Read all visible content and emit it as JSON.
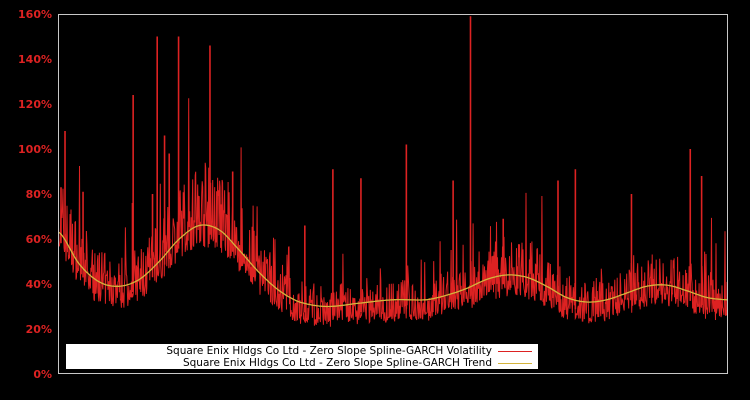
{
  "colors": {
    "background": "#000000",
    "tick_label": "#dd2222",
    "volatility": "#dd2222",
    "trend": "#d4b43c",
    "frame": "#c8c8c8",
    "legend_bg": "#ffffff"
  },
  "legend": {
    "items": [
      {
        "label": "Square Enix Hldgs Co Ltd - Zero Slope Spline-GARCH Volatility",
        "color": "#dd2222"
      },
      {
        "label": "Square Enix Hldgs Co Ltd - Zero Slope Spline-GARCH Trend",
        "color": "#d4b43c"
      }
    ]
  },
  "yaxis": {
    "ticks": [
      "0%",
      "20%",
      "40%",
      "60%",
      "80%",
      "100%",
      "120%",
      "140%",
      "160%"
    ]
  },
  "chart_data": {
    "type": "line",
    "title": "",
    "xlabel": "",
    "ylabel": "",
    "ylim": [
      0,
      160
    ],
    "grid": false,
    "legend_position": "lower left (inside plot)",
    "y_tick_labels": [
      "0%",
      "20%",
      "40%",
      "60%",
      "80%",
      "100%",
      "120%",
      "140%",
      "160%"
    ],
    "x_tick_labels": [],
    "x_normalized_range": [
      0,
      1
    ],
    "series": [
      {
        "name": "Square Enix Hldgs Co Ltd - Zero Slope Spline-GARCH Trend",
        "color": "#d4b43c",
        "x": [
          0.0,
          0.03,
          0.06,
          0.09,
          0.12,
          0.15,
          0.18,
          0.21,
          0.24,
          0.27,
          0.3,
          0.33,
          0.36,
          0.4,
          0.45,
          0.5,
          0.55,
          0.58,
          0.61,
          0.64,
          0.67,
          0.7,
          0.73,
          0.76,
          0.79,
          0.82,
          0.85,
          0.88,
          0.91,
          0.94,
          0.97,
          1.0
        ],
        "values": [
          63,
          49,
          41,
          39,
          42,
          50,
          60,
          66,
          64,
          55,
          45,
          37,
          32,
          30,
          31.5,
          33,
          33,
          35,
          38,
          42,
          44,
          43,
          39,
          34,
          32,
          33,
          36,
          39,
          39.5,
          37,
          34,
          33
        ]
      },
      {
        "name": "Square Enix Hldgs Co Ltd - Zero Slope Spline-GARCH Volatility",
        "color": "#dd2222",
        "note": "Daily volatility, noisy around trend; notable spikes listed",
        "baseline_offset_below_trend": -8,
        "spikes": [
          {
            "x": 0.009,
            "value": 108
          },
          {
            "x": 0.003,
            "value": 83
          },
          {
            "x": 0.036,
            "value": 81
          },
          {
            "x": 0.11,
            "value": 76
          },
          {
            "x": 0.111,
            "value": 124
          },
          {
            "x": 0.14,
            "value": 80
          },
          {
            "x": 0.147,
            "value": 150
          },
          {
            "x": 0.158,
            "value": 106
          },
          {
            "x": 0.165,
            "value": 98
          },
          {
            "x": 0.179,
            "value": 150
          },
          {
            "x": 0.226,
            "value": 146
          },
          {
            "x": 0.26,
            "value": 90
          },
          {
            "x": 0.29,
            "value": 65
          },
          {
            "x": 0.368,
            "value": 66
          },
          {
            "x": 0.41,
            "value": 91
          },
          {
            "x": 0.452,
            "value": 87
          },
          {
            "x": 0.52,
            "value": 102
          },
          {
            "x": 0.59,
            "value": 86
          },
          {
            "x": 0.616,
            "value": 159
          },
          {
            "x": 0.665,
            "value": 69
          },
          {
            "x": 0.747,
            "value": 86
          },
          {
            "x": 0.773,
            "value": 91
          },
          {
            "x": 0.857,
            "value": 80
          },
          {
            "x": 0.945,
            "value": 100
          },
          {
            "x": 0.962,
            "value": 88
          }
        ]
      }
    ]
  }
}
